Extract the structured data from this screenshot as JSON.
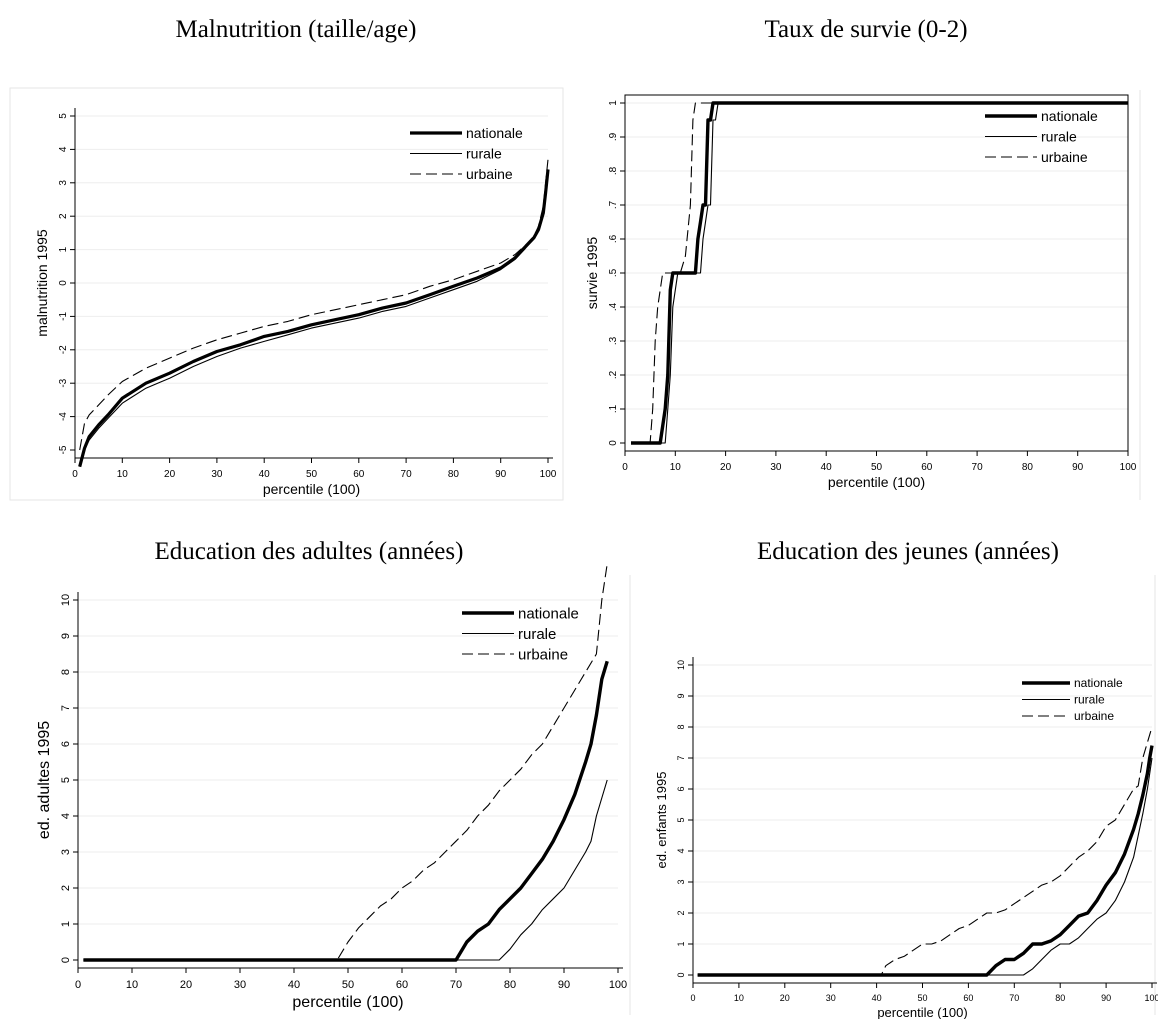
{
  "chart_data": [
    {
      "type": "line",
      "title": "Malnutrition (taille/age)",
      "xlabel": "percentile (100)",
      "ylabel": "malnutrition 1995",
      "xlim": [
        0,
        100
      ],
      "ylim": [
        -5,
        5
      ],
      "xticks": [
        "0",
        "10",
        "20",
        "30",
        "40",
        "50",
        "60",
        "70",
        "80",
        "90",
        "100"
      ],
      "yticks": [
        "-5",
        "-4",
        "-3",
        "-2",
        "-1",
        "0",
        "1",
        "2",
        "3",
        "4",
        "5"
      ],
      "legend_position": "top-right",
      "grid": true,
      "series": [
        {
          "name": "nationale",
          "style": "thick",
          "x": [
            1,
            2,
            3,
            5,
            7,
            10,
            15,
            20,
            25,
            30,
            35,
            40,
            45,
            50,
            55,
            60,
            65,
            70,
            75,
            80,
            85,
            90,
            93,
            95,
            97,
            98,
            99,
            99.5,
            100
          ],
          "y": [
            -5.5,
            -4.95,
            -4.6,
            -4.25,
            -3.95,
            -3.45,
            -3.0,
            -2.7,
            -2.35,
            -2.05,
            -1.85,
            -1.6,
            -1.45,
            -1.25,
            -1.1,
            -0.95,
            -0.75,
            -0.6,
            -0.35,
            -0.1,
            0.15,
            0.45,
            0.75,
            1.05,
            1.35,
            1.6,
            2.1,
            2.7,
            3.4
          ]
        },
        {
          "name": "rurale",
          "style": "thin",
          "x": [
            1,
            2,
            3,
            5,
            7,
            10,
            15,
            20,
            25,
            30,
            35,
            40,
            45,
            50,
            55,
            60,
            65,
            70,
            75,
            80,
            85,
            90,
            93,
            95,
            97,
            98,
            99,
            99.5,
            100
          ],
          "y": [
            -5.5,
            -5.0,
            -4.7,
            -4.35,
            -4.05,
            -3.6,
            -3.15,
            -2.85,
            -2.5,
            -2.2,
            -1.95,
            -1.75,
            -1.55,
            -1.35,
            -1.2,
            -1.05,
            -0.85,
            -0.7,
            -0.45,
            -0.2,
            0.05,
            0.4,
            0.7,
            1.0,
            1.35,
            1.6,
            2.1,
            2.7,
            3.4
          ]
        },
        {
          "name": "urbaine",
          "style": "dashed",
          "x": [
            1,
            2,
            3,
            5,
            7,
            10,
            15,
            20,
            25,
            30,
            35,
            40,
            45,
            50,
            55,
            60,
            65,
            70,
            75,
            80,
            85,
            90,
            93,
            95,
            97,
            98,
            99,
            99.5,
            100
          ],
          "y": [
            -5.0,
            -4.2,
            -3.95,
            -3.65,
            -3.35,
            -2.95,
            -2.55,
            -2.25,
            -1.95,
            -1.7,
            -1.5,
            -1.3,
            -1.15,
            -0.95,
            -0.8,
            -0.65,
            -0.5,
            -0.35,
            -0.1,
            0.1,
            0.35,
            0.6,
            0.85,
            1.1,
            1.4,
            1.7,
            2.3,
            3.0,
            3.7
          ]
        }
      ]
    },
    {
      "type": "line",
      "title": "Taux de survie (0-2)",
      "xlabel": "percentile (100)",
      "ylabel": "survie 1995",
      "xlim": [
        0,
        100
      ],
      "ylim": [
        0,
        1
      ],
      "xticks": [
        "0",
        "10",
        "20",
        "30",
        "40",
        "50",
        "60",
        "70",
        "80",
        "90",
        "100"
      ],
      "yticks": [
        "0",
        ".1",
        ".2",
        ".3",
        ".4",
        ".5",
        ".6",
        ".7",
        ".8",
        ".9",
        "1"
      ],
      "legend_position": "top-right",
      "grid": true,
      "series": [
        {
          "name": "nationale",
          "style": "thick",
          "x": [
            1.2,
            7,
            7.5,
            8,
            8.5,
            9,
            9.5,
            10,
            12,
            14,
            14.5,
            15,
            15.5,
            16,
            16.5,
            17,
            17.5,
            100
          ],
          "y": [
            0,
            0,
            0.05,
            0.1,
            0.2,
            0.45,
            0.5,
            0.5,
            0.5,
            0.5,
            0.6,
            0.65,
            0.7,
            0.7,
            0.95,
            0.95,
            1,
            1
          ]
        },
        {
          "name": "rurale",
          "style": "thin",
          "x": [
            1.2,
            8,
            8.5,
            9,
            9.5,
            10,
            10.5,
            13,
            15,
            15.5,
            16,
            16.5,
            17,
            17.5,
            18,
            18.5,
            100
          ],
          "y": [
            0,
            0,
            0.1,
            0.2,
            0.4,
            0.45,
            0.5,
            0.5,
            0.5,
            0.6,
            0.65,
            0.7,
            0.7,
            0.95,
            0.95,
            1,
            1
          ]
        },
        {
          "name": "urbaine",
          "style": "dashed",
          "x": [
            1.2,
            5,
            5.5,
            6,
            6.5,
            7,
            7.5,
            11,
            12,
            13,
            13.5,
            14,
            100
          ],
          "y": [
            0,
            0,
            0.1,
            0.3,
            0.4,
            0.45,
            0.5,
            0.5,
            0.55,
            0.7,
            0.95,
            1,
            1
          ]
        }
      ]
    },
    {
      "type": "line",
      "title": "Education des adultes (années)",
      "xlabel": "percentile (100)",
      "ylabel": "ed. adultes 1995",
      "xlim": [
        0,
        100
      ],
      "ylim": [
        0,
        10
      ],
      "xticks": [
        "0",
        "10",
        "20",
        "30",
        "40",
        "50",
        "60",
        "70",
        "80",
        "90",
        "100"
      ],
      "yticks": [
        "0",
        "1",
        "2",
        "3",
        "4",
        "5",
        "6",
        "7",
        "8",
        "9",
        "10"
      ],
      "legend_position": "top-right",
      "grid": true,
      "series": [
        {
          "name": "nationale",
          "style": "thick",
          "x": [
            1,
            70,
            72,
            74,
            76,
            78,
            80,
            82,
            84,
            86,
            88,
            90,
            92,
            94,
            95,
            96,
            97,
            98
          ],
          "y": [
            0,
            0,
            0.5,
            0.8,
            1.0,
            1.4,
            1.7,
            2.0,
            2.4,
            2.8,
            3.3,
            3.9,
            4.6,
            5.5,
            6.0,
            6.8,
            7.8,
            8.3
          ]
        },
        {
          "name": "rurale",
          "style": "thin",
          "x": [
            1,
            78,
            80,
            82,
            84,
            86,
            88,
            90,
            92,
            94,
            95,
            96,
            97,
            98
          ],
          "y": [
            0,
            0,
            0.3,
            0.7,
            1.0,
            1.4,
            1.7,
            2.0,
            2.5,
            3.0,
            3.3,
            4.0,
            4.5,
            5.0
          ]
        },
        {
          "name": "urbaine",
          "style": "dashed",
          "x": [
            1,
            48,
            50,
            52,
            54,
            56,
            58,
            60,
            62,
            64,
            66,
            68,
            70,
            72,
            74,
            76,
            78,
            80,
            82,
            84,
            86,
            88,
            90,
            92,
            94,
            96,
            97,
            98
          ],
          "y": [
            0,
            0,
            0.5,
            0.9,
            1.2,
            1.5,
            1.7,
            2.0,
            2.2,
            2.5,
            2.7,
            3.0,
            3.3,
            3.6,
            4.0,
            4.3,
            4.7,
            5.0,
            5.3,
            5.7,
            6.0,
            6.5,
            7.0,
            7.5,
            8.0,
            8.5,
            10.0,
            11.0
          ]
        }
      ]
    },
    {
      "type": "line",
      "title": "Education des jeunes (années)",
      "xlabel": "percentile (100)",
      "ylabel": "ed. enfants 1995",
      "xlim": [
        0,
        100
      ],
      "ylim": [
        0,
        10
      ],
      "xticks": [
        "0",
        "10",
        "20",
        "30",
        "40",
        "50",
        "60",
        "70",
        "80",
        "90",
        "100"
      ],
      "yticks": [
        "0",
        "1",
        "2",
        "3",
        "4",
        "5",
        "6",
        "7",
        "8",
        "9",
        "10"
      ],
      "legend_position": "top-right",
      "grid": true,
      "series": [
        {
          "name": "nationale",
          "style": "thick",
          "x": [
            1,
            64,
            66,
            68,
            70,
            72,
            74,
            76,
            78,
            80,
            82,
            84,
            86,
            88,
            90,
            92,
            94,
            96,
            97,
            98,
            99,
            99.5,
            100
          ],
          "y": [
            0,
            0,
            0.3,
            0.5,
            0.5,
            0.7,
            1.0,
            1.0,
            1.1,
            1.3,
            1.6,
            1.9,
            2.0,
            2.4,
            2.9,
            3.3,
            3.9,
            4.7,
            5.2,
            5.8,
            6.5,
            7.0,
            7.4
          ]
        },
        {
          "name": "rurale",
          "style": "thin",
          "x": [
            1,
            72,
            74,
            76,
            78,
            80,
            82,
            84,
            86,
            88,
            90,
            92,
            94,
            96,
            97,
            98,
            99,
            99.5,
            100
          ],
          "y": [
            0,
            0,
            0.2,
            0.5,
            0.8,
            1.0,
            1.0,
            1.2,
            1.5,
            1.8,
            2.0,
            2.4,
            3.0,
            3.8,
            4.5,
            5.2,
            6.0,
            6.5,
            7.0
          ]
        },
        {
          "name": "urbaine",
          "style": "dashed",
          "x": [
            1,
            41,
            42,
            44,
            46,
            48,
            50,
            52,
            54,
            56,
            58,
            60,
            62,
            64,
            66,
            68,
            70,
            72,
            74,
            76,
            78,
            80,
            82,
            84,
            86,
            88,
            90,
            92,
            94,
            96,
            97,
            98,
            99,
            100
          ],
          "y": [
            0,
            0,
            0.3,
            0.5,
            0.6,
            0.8,
            1.0,
            1.0,
            1.1,
            1.3,
            1.5,
            1.6,
            1.8,
            2.0,
            2.0,
            2.1,
            2.3,
            2.5,
            2.7,
            2.9,
            3.0,
            3.2,
            3.5,
            3.8,
            4.0,
            4.3,
            4.8,
            5.0,
            5.5,
            6.0,
            6.1,
            7.0,
            7.5,
            8.0
          ]
        }
      ]
    }
  ]
}
